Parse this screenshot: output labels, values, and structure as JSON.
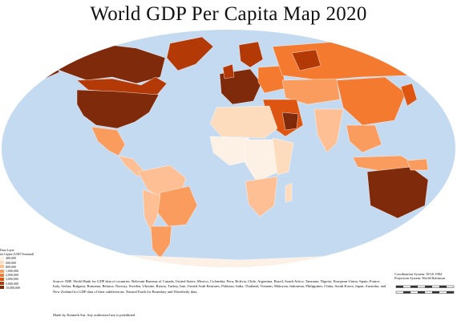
{
  "title": "World GDP Per Capita Map 2020",
  "colors": {
    "ocean": "#c4daf1",
    "background": "#ffffff",
    "classes": [
      "#fdf1e6",
      "#fddbbd",
      "#fdbf93",
      "#fb9c5f",
      "#f47a30",
      "#de5511",
      "#b33a06",
      "#7f2a0b"
    ]
  },
  "legend": {
    "heading": "Data Layer",
    "subheading": "ita Capita (USD Nominal)",
    "classes": [
      "400,000",
      "600,000",
      "800,000",
      "1,000,000",
      "2,000,000",
      "3,000,000",
      "5,000,000",
      "10,000,000"
    ]
  },
  "source_text": "Source: IMF, World Bank for GDP data of countries. Relevant Bureaus of Canada, United States, Mexico, Colombia, Peru, Bolivia, Chile, Argentina, Brazil, South Africa, Tanzania, Nigeria, European Union, Spain, France, Italy, Serbia, Bulgaria, Romania, Belarus, Norway, Sweden, Ukraine, Russia, Turkey, Iran, United Arab Emirates, Pakistan, India, Thailand, Vietnam, Malaysia, Indonesia, Philippines, China, South Korea, Japan, Australia, and New Zealand for GDP data of their subdivisions. Natural Earth for Boundary and Waterbody data.",
  "credit_text": "Made by Kenneth Sui. Any authorized use is prohibited.",
  "projection": {
    "coordinate_system": "Coordination System: WGS 1984",
    "projection_system": "Projection System: World Robinson"
  }
}
